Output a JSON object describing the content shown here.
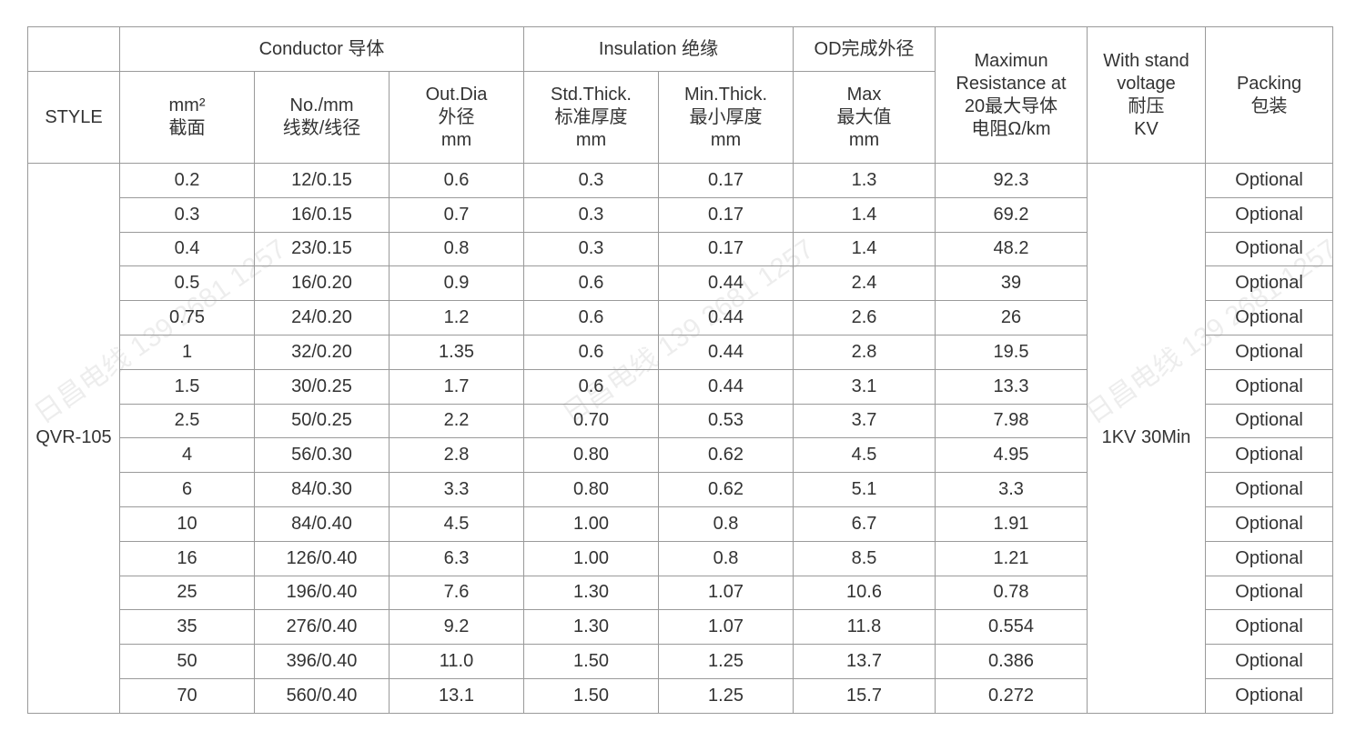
{
  "header": {
    "style": "STYLE",
    "conductor": "Conductor 导体",
    "insulation": "Insulation 绝缘",
    "od": "OD完成外径",
    "resistance": [
      "Maximun",
      "Resistance at",
      "20最大导体",
      "电阻Ω/km"
    ],
    "withstand": [
      "With stand",
      "voltage",
      "耐压",
      "KV"
    ],
    "packing": [
      "Packing",
      "包装"
    ],
    "area": [
      "mm²",
      "截面"
    ],
    "strands": [
      "No./mm",
      "线数/线径"
    ],
    "out_dia": [
      "Out.Dia",
      "外径",
      "mm"
    ],
    "std_thick": [
      "Std.Thick.",
      "标准厚度",
      "mm"
    ],
    "min_thick": [
      "Min.Thick.",
      "最小厚度",
      "mm"
    ],
    "od_max": [
      "Max",
      "最大值",
      "mm"
    ]
  },
  "style_value": "QVR-105",
  "withstand_value": "1KV 30Min",
  "rows": [
    [
      "0.2",
      "12/0.15",
      "0.6",
      "0.3",
      "0.17",
      "1.3",
      "92.3",
      "Optional"
    ],
    [
      "0.3",
      "16/0.15",
      "0.7",
      "0.3",
      "0.17",
      "1.4",
      "69.2",
      "Optional"
    ],
    [
      "0.4",
      "23/0.15",
      "0.8",
      "0.3",
      "0.17",
      "1.4",
      "48.2",
      "Optional"
    ],
    [
      "0.5",
      "16/0.20",
      "0.9",
      "0.6",
      "0.44",
      "2.4",
      "39",
      "Optional"
    ],
    [
      "0.75",
      "24/0.20",
      "1.2",
      "0.6",
      "0.44",
      "2.6",
      "26",
      "Optional"
    ],
    [
      "1",
      "32/0.20",
      "1.35",
      "0.6",
      "0.44",
      "2.8",
      "19.5",
      "Optional"
    ],
    [
      "1.5",
      "30/0.25",
      "1.7",
      "0.6",
      "0.44",
      "3.1",
      "13.3",
      "Optional"
    ],
    [
      "2.5",
      "50/0.25",
      "2.2",
      "0.70",
      "0.53",
      "3.7",
      "7.98",
      "Optional"
    ],
    [
      "4",
      "56/0.30",
      "2.8",
      "0.80",
      "0.62",
      "4.5",
      "4.95",
      "Optional"
    ],
    [
      "6",
      "84/0.30",
      "3.3",
      "0.80",
      "0.62",
      "5.1",
      "3.3",
      "Optional"
    ],
    [
      "10",
      "84/0.40",
      "4.5",
      "1.00",
      "0.8",
      "6.7",
      "1.91",
      "Optional"
    ],
    [
      "16",
      "126/0.40",
      "6.3",
      "1.00",
      "0.8",
      "8.5",
      "1.21",
      "Optional"
    ],
    [
      "25",
      "196/0.40",
      "7.6",
      "1.30",
      "1.07",
      "10.6",
      "0.78",
      "Optional"
    ],
    [
      "35",
      "276/0.40",
      "9.2",
      "1.30",
      "1.07",
      "11.8",
      "0.554",
      "Optional"
    ],
    [
      "50",
      "396/0.40",
      "11.0",
      "1.50",
      "1.25",
      "13.7",
      "0.386",
      "Optional"
    ],
    [
      "70",
      "560/0.40",
      "13.1",
      "1.50",
      "1.25",
      "15.7",
      "0.272",
      "Optional"
    ]
  ],
  "watermark": "日昌电线 139 2681 1257"
}
